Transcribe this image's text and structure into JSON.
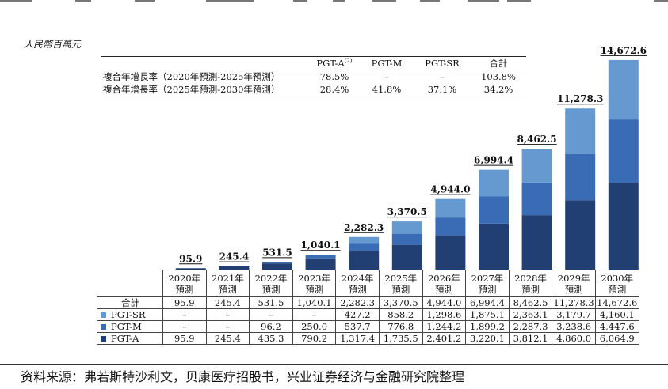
{
  "unit_label": "人民幣百萬元",
  "cagr": {
    "headers": [
      "",
      "PGT-A",
      "PGT-M",
      "PGT-SR",
      "合計"
    ],
    "footnote_mark": "(2)",
    "rows": [
      {
        "label": "複合年增長率（2020年預測-2025年預測）",
        "values": [
          "78.5%",
          "–",
          "–",
          "103.8%"
        ]
      },
      {
        "label": "複合年增長率（2025年預測-2030年預測）",
        "values": [
          "28.4%",
          "41.8%",
          "37.1%",
          "34.2%"
        ]
      }
    ]
  },
  "chart_data": {
    "type": "bar",
    "stacked": true,
    "categories": [
      "2020年\n預測",
      "2021年\n預測",
      "2022年\n預測",
      "2023年\n預測",
      "2024年\n預測",
      "2025年\n預測",
      "2026年\n預測",
      "2027年\n預測",
      "2028年\n預測",
      "2029年\n預測",
      "2030年\n預測"
    ],
    "series": [
      {
        "name": "PGT-A",
        "color": "#213f72",
        "values": [
          95.9,
          245.4,
          435.3,
          790.2,
          1317.4,
          1735.5,
          2401.2,
          3220.1,
          3812.1,
          4860.0,
          6064.9
        ]
      },
      {
        "name": "PGT-M",
        "color": "#3a6bb5",
        "values": [
          0,
          0,
          96.2,
          250.0,
          537.7,
          776.8,
          1244.2,
          1899.2,
          2287.3,
          3238.6,
          4447.6
        ]
      },
      {
        "name": "PGT-SR",
        "color": "#6699cf",
        "values": [
          0,
          0,
          0,
          0,
          427.2,
          858.2,
          1298.6,
          1875.1,
          2363.1,
          3179.7,
          4160.1
        ]
      }
    ],
    "totals": [
      95.9,
      245.4,
      531.5,
      1040.1,
      2282.3,
      3370.5,
      4944.0,
      6994.4,
      8462.5,
      11278.3,
      14672.6
    ],
    "total_labels": [
      "95.9",
      "245.4",
      "531.5",
      "1,040.1",
      "2,282.3",
      "3,370.5",
      "4,944.0",
      "6,994.4",
      "8,462.5",
      "11,278.3",
      "14,672.6"
    ],
    "ylabel": "人民幣百萬元",
    "ylim": [
      0,
      15000
    ]
  },
  "data_table": {
    "year_labels": [
      [
        "2020年",
        "預測"
      ],
      [
        "2021年",
        "預測"
      ],
      [
        "2022年",
        "預測"
      ],
      [
        "2023年",
        "預測"
      ],
      [
        "2024年",
        "預測"
      ],
      [
        "2025年",
        "預測"
      ],
      [
        "2026年",
        "預測"
      ],
      [
        "2027年",
        "預測"
      ],
      [
        "2028年",
        "預測"
      ],
      [
        "2029年",
        "預測"
      ],
      [
        "2030年",
        "預測"
      ]
    ],
    "rows": [
      {
        "label": "合計",
        "color": "",
        "values": [
          "95.9",
          "245.4",
          "531.5",
          "1,040.1",
          "2,282.3",
          "3,370.5",
          "4,944.0",
          "6,994.4",
          "8,462.5",
          "11,278.3",
          "14,672.6"
        ]
      },
      {
        "label": "PGT-SR",
        "color": "#6699cf",
        "values": [
          "–",
          "–",
          "–",
          "–",
          "427.2",
          "858.2",
          "1,298.6",
          "1,875.1",
          "2,363.1",
          "3,179.7",
          "4,160.1"
        ]
      },
      {
        "label": "PGT-M",
        "color": "#3a6bb5",
        "values": [
          "–",
          "–",
          "96.2",
          "250.0",
          "537.7",
          "776.8",
          "1,244.2",
          "1,899.2",
          "2,287.3",
          "3,238.6",
          "4,447.6"
        ]
      },
      {
        "label": "PGT-A",
        "color": "#213f72",
        "values": [
          "95.9",
          "245.4",
          "435.3",
          "790.2",
          "1,317.4",
          "1,735.5",
          "2,401.2",
          "3,220.1",
          "3,812.1",
          "4,860.0",
          "6,064.9"
        ]
      }
    ]
  },
  "source_note": "资料来源：弗若斯特沙利文，贝康医疗招股书，兴业证券经济与金融研究院整理"
}
